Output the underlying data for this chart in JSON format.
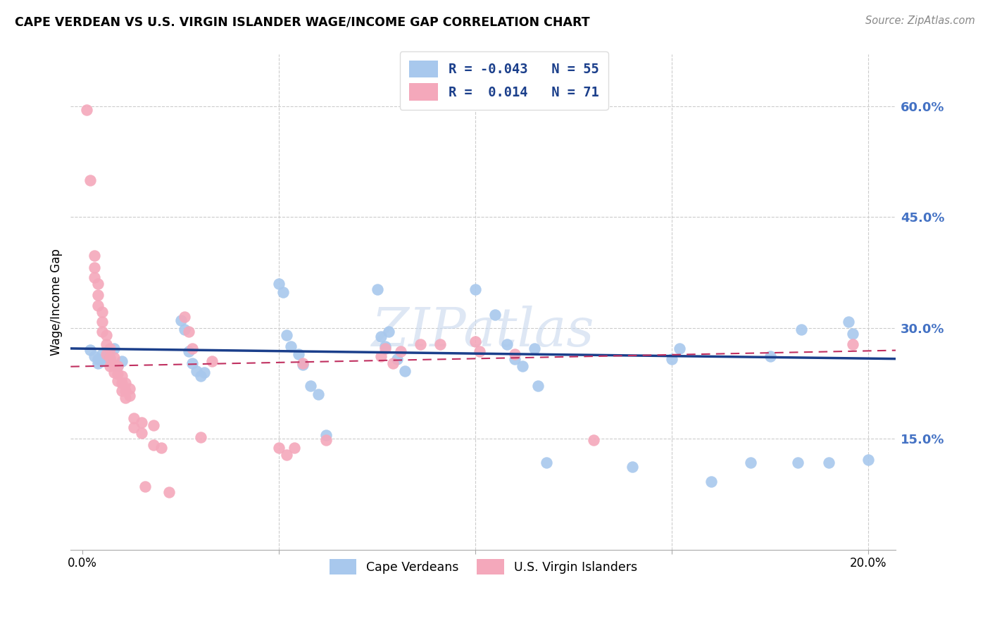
{
  "title": "CAPE VERDEAN VS U.S. VIRGIN ISLANDER WAGE/INCOME GAP CORRELATION CHART",
  "source": "Source: ZipAtlas.com",
  "ylabel": "Wage/Income Gap",
  "x_ticks": [
    0.0,
    0.05,
    0.1,
    0.15,
    0.2
  ],
  "x_tick_labels": [
    "0.0%",
    "",
    "",
    "",
    "20.0%"
  ],
  "y_ticks": [
    0.15,
    0.3,
    0.45,
    0.6
  ],
  "xlim": [
    -0.003,
    0.207
  ],
  "ylim": [
    0.0,
    0.67
  ],
  "blue_color": "#A8C8ED",
  "pink_color": "#F4A8BB",
  "trend_blue_color": "#1B3F8B",
  "trend_pink_color": "#C03060",
  "watermark": "ZIPatlas",
  "blue_scatter": [
    [
      0.002,
      0.27
    ],
    [
      0.003,
      0.262
    ],
    [
      0.004,
      0.258
    ],
    [
      0.004,
      0.252
    ],
    [
      0.005,
      0.265
    ],
    [
      0.005,
      0.255
    ],
    [
      0.006,
      0.26
    ],
    [
      0.007,
      0.258
    ],
    [
      0.008,
      0.272
    ],
    [
      0.009,
      0.248
    ],
    [
      0.01,
      0.255
    ],
    [
      0.025,
      0.31
    ],
    [
      0.026,
      0.298
    ],
    [
      0.027,
      0.268
    ],
    [
      0.028,
      0.252
    ],
    [
      0.029,
      0.242
    ],
    [
      0.03,
      0.235
    ],
    [
      0.031,
      0.24
    ],
    [
      0.05,
      0.36
    ],
    [
      0.051,
      0.348
    ],
    [
      0.052,
      0.29
    ],
    [
      0.053,
      0.275
    ],
    [
      0.055,
      0.265
    ],
    [
      0.056,
      0.25
    ],
    [
      0.058,
      0.222
    ],
    [
      0.06,
      0.21
    ],
    [
      0.062,
      0.155
    ],
    [
      0.075,
      0.352
    ],
    [
      0.076,
      0.288
    ],
    [
      0.077,
      0.275
    ],
    [
      0.078,
      0.295
    ],
    [
      0.08,
      0.258
    ],
    [
      0.082,
      0.242
    ],
    [
      0.1,
      0.352
    ],
    [
      0.105,
      0.318
    ],
    [
      0.108,
      0.278
    ],
    [
      0.11,
      0.258
    ],
    [
      0.112,
      0.248
    ],
    [
      0.115,
      0.272
    ],
    [
      0.116,
      0.222
    ],
    [
      0.118,
      0.118
    ],
    [
      0.14,
      0.112
    ],
    [
      0.15,
      0.258
    ],
    [
      0.152,
      0.272
    ],
    [
      0.16,
      0.092
    ],
    [
      0.17,
      0.118
    ],
    [
      0.175,
      0.262
    ],
    [
      0.182,
      0.118
    ],
    [
      0.183,
      0.298
    ],
    [
      0.19,
      0.118
    ],
    [
      0.195,
      0.308
    ],
    [
      0.196,
      0.292
    ],
    [
      0.2,
      0.122
    ]
  ],
  "pink_scatter": [
    [
      0.001,
      0.595
    ],
    [
      0.002,
      0.5
    ],
    [
      0.003,
      0.398
    ],
    [
      0.003,
      0.382
    ],
    [
      0.003,
      0.368
    ],
    [
      0.004,
      0.36
    ],
    [
      0.004,
      0.345
    ],
    [
      0.004,
      0.33
    ],
    [
      0.005,
      0.322
    ],
    [
      0.005,
      0.308
    ],
    [
      0.005,
      0.295
    ],
    [
      0.006,
      0.29
    ],
    [
      0.006,
      0.278
    ],
    [
      0.006,
      0.265
    ],
    [
      0.007,
      0.272
    ],
    [
      0.007,
      0.26
    ],
    [
      0.007,
      0.248
    ],
    [
      0.008,
      0.26
    ],
    [
      0.008,
      0.25
    ],
    [
      0.008,
      0.24
    ],
    [
      0.009,
      0.248
    ],
    [
      0.009,
      0.238
    ],
    [
      0.009,
      0.228
    ],
    [
      0.01,
      0.235
    ],
    [
      0.01,
      0.225
    ],
    [
      0.01,
      0.215
    ],
    [
      0.011,
      0.225
    ],
    [
      0.011,
      0.215
    ],
    [
      0.011,
      0.205
    ],
    [
      0.012,
      0.218
    ],
    [
      0.012,
      0.208
    ],
    [
      0.013,
      0.178
    ],
    [
      0.013,
      0.165
    ],
    [
      0.015,
      0.172
    ],
    [
      0.015,
      0.158
    ],
    [
      0.016,
      0.085
    ],
    [
      0.018,
      0.168
    ],
    [
      0.018,
      0.142
    ],
    [
      0.02,
      0.138
    ],
    [
      0.022,
      0.078
    ],
    [
      0.026,
      0.315
    ],
    [
      0.027,
      0.295
    ],
    [
      0.028,
      0.272
    ],
    [
      0.03,
      0.152
    ],
    [
      0.033,
      0.255
    ],
    [
      0.05,
      0.138
    ],
    [
      0.052,
      0.128
    ],
    [
      0.054,
      0.138
    ],
    [
      0.056,
      0.252
    ],
    [
      0.062,
      0.148
    ],
    [
      0.076,
      0.262
    ],
    [
      0.077,
      0.272
    ],
    [
      0.079,
      0.252
    ],
    [
      0.081,
      0.268
    ],
    [
      0.086,
      0.278
    ],
    [
      0.091,
      0.278
    ],
    [
      0.1,
      0.282
    ],
    [
      0.101,
      0.268
    ],
    [
      0.11,
      0.265
    ],
    [
      0.13,
      0.148
    ],
    [
      0.196,
      0.278
    ]
  ]
}
